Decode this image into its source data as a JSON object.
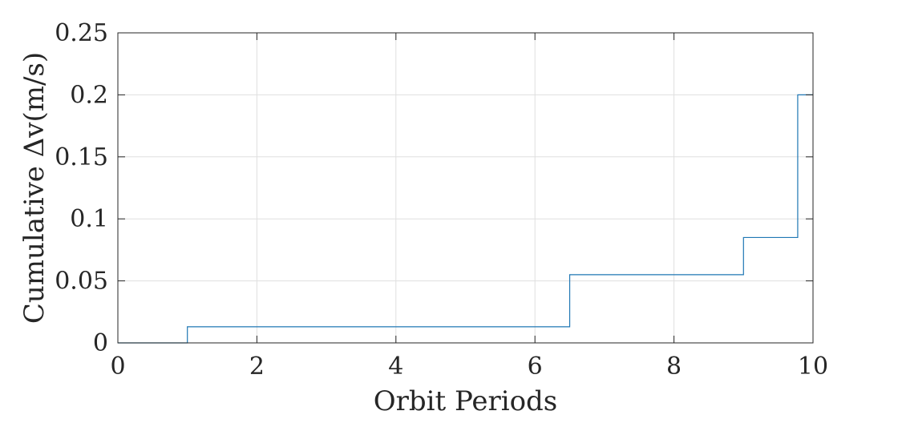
{
  "chart_data": {
    "type": "line",
    "step": true,
    "title": "",
    "xlabel": "Orbit Periods",
    "ylabel": "Cumulative Δv(m/s)",
    "xlim": [
      0,
      10
    ],
    "ylim": [
      0,
      0.25
    ],
    "xticks": [
      0,
      2,
      4,
      6,
      8,
      10
    ],
    "xtick_labels": [
      "0",
      "2",
      "4",
      "6",
      "8",
      "10"
    ],
    "yticks": [
      0,
      0.05,
      0.1,
      0.15,
      0.2,
      0.25
    ],
    "ytick_labels": [
      "0",
      "0.05",
      "0.1",
      "0.15",
      "0.2",
      "0.25"
    ],
    "grid": true,
    "series": [
      {
        "color": "#1f77b4",
        "x": [
          0,
          1,
          1,
          6.5,
          6.5,
          9,
          9,
          9.78,
          9.78,
          10
        ],
        "y": [
          0,
          0,
          0.013,
          0.013,
          0.055,
          0.055,
          0.085,
          0.085,
          0.2,
          0.2
        ]
      }
    ]
  }
}
